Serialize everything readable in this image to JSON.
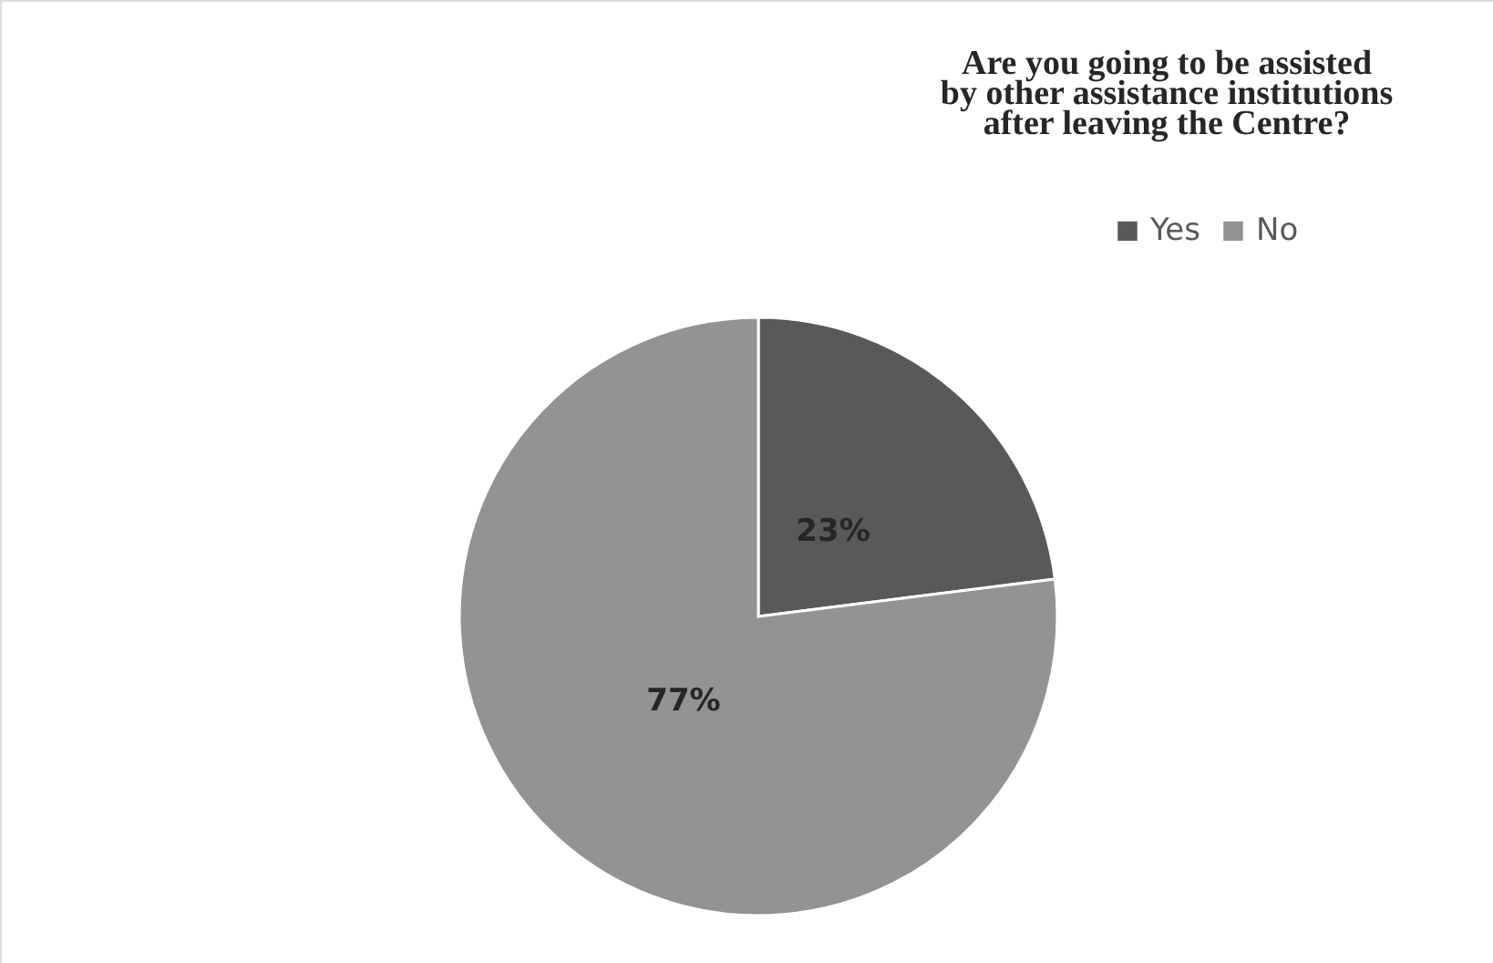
{
  "chart_data": {
    "type": "pie",
    "title": "Are you going to be assisted\nby other assistance institutions\nafter leaving the Centre?",
    "categories": [
      "Yes",
      "No"
    ],
    "values": [
      23,
      77
    ],
    "colors": [
      "#595959",
      "#939393"
    ],
    "value_labels": [
      "23%",
      "77%"
    ],
    "legend": "top right"
  }
}
